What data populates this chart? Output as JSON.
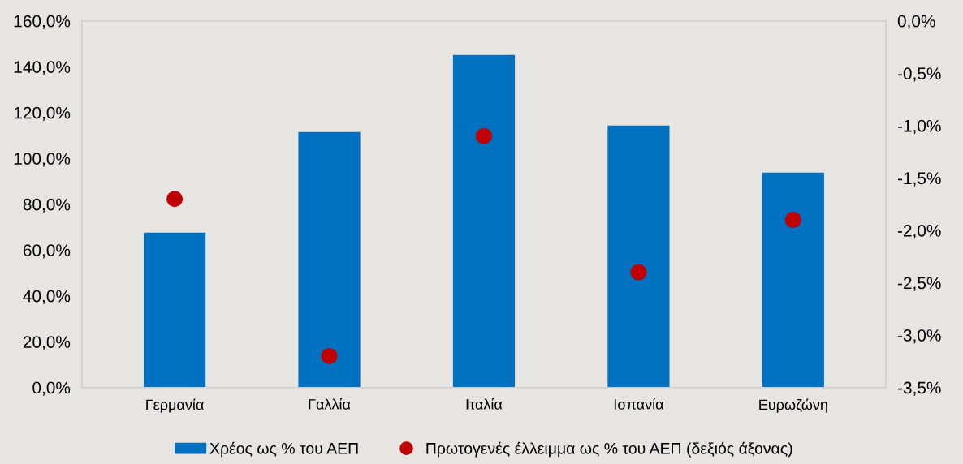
{
  "chart_data": {
    "type": "bar",
    "categories": [
      "Γερμανία",
      "Γαλλία",
      "Ιταλία",
      "Ισπανία",
      "Ευρωζώνη"
    ],
    "series": [
      {
        "name": "Χρέος ως % του ΑΕΠ",
        "color": "#0070c0",
        "values": [
          67.6,
          111.5,
          145.1,
          114.3,
          93.8
        ]
      },
      {
        "name": "Πρωτογενές έλλειμμα ως % του ΑΕΠ (δεξιός άξονας)",
        "color": "#c00000",
        "type": "scatter",
        "axis": "y2",
        "marker": "circle",
        "values": [
          -1.7,
          -3.2,
          -1.1,
          -2.4,
          -1.9
        ]
      }
    ],
    "ylim": [
      0,
      160
    ],
    "yticks": [
      {
        "value": 0,
        "label": "0,0%"
      },
      {
        "value": 20,
        "label": "20,0%"
      },
      {
        "value": 40,
        "label": "40,0%"
      },
      {
        "value": 60,
        "label": "60,0%"
      },
      {
        "value": 80,
        "label": "80,0%"
      },
      {
        "value": 100,
        "label": "100,0%"
      },
      {
        "value": 120,
        "label": "120,0%"
      },
      {
        "value": 140,
        "label": "140,0%"
      },
      {
        "value": 160,
        "label": "160,0%"
      }
    ],
    "y2lim": [
      -3.5,
      0
    ],
    "y2ticks": [
      {
        "value": -3.5,
        "label": "-3,5%"
      },
      {
        "value": -3.0,
        "label": "-3,0%"
      },
      {
        "value": -2.5,
        "label": "-2,5%"
      },
      {
        "value": -2.0,
        "label": "-2,0%"
      },
      {
        "value": -1.5,
        "label": "-1,5%"
      },
      {
        "value": -1.0,
        "label": "-1,0%"
      },
      {
        "value": -0.5,
        "label": "-0,5%"
      },
      {
        "value": 0,
        "label": "0,0%"
      }
    ],
    "grid": false,
    "legend": "bottom"
  }
}
